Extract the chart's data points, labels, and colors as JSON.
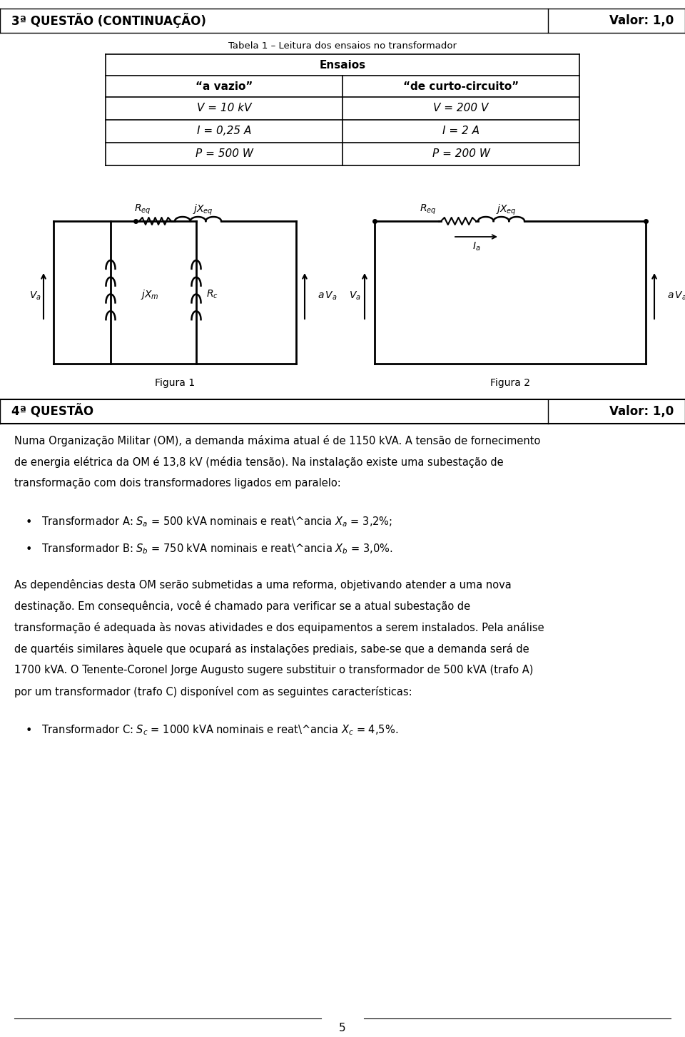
{
  "header_left": "3ª QUESTÃO (CONTINUAÇÃO)",
  "header_right": "Valor: 1,0",
  "table_caption": "Tabela 1 – Leitura dos ensaios no transformador",
  "table_header": "Ensaios",
  "col1_header": "“a vazio”",
  "col2_header": "“de curto-circuito”",
  "col1_rows": [
    "V = 10 kV",
    "I = 0,25 A",
    "P = 500 W"
  ],
  "col2_rows": [
    "V = 200 V",
    "I = 2 A",
    "P = 200 W"
  ],
  "figura1_label": "Figura 1",
  "figura2_label": "Figura 2",
  "section2_header_left": "4ª QUESTÃO",
  "section2_header_right": "Valor: 1,0",
  "p1_lines": [
    "Numa Organização Militar (OM), a demanda máxima atual é de 1150 kVA. A tensão de fornecimento",
    "de energia elétrica da OM é 13,8 kV (média tensão). Na instalação existe uma subestação de",
    "transformação com dois transformadores ligados em paralelo:"
  ],
  "bullet1": "Transformador A:  $S_a$  = 500 kVA nominais e reatância  $X_a$  = 3,2%;",
  "bullet2": "Transformador B:  $S_b$  = 750 kVA nominais e reatância  $X_b$  = 3,0%.",
  "p2_lines": [
    "As dependências desta OM serão submetidas a uma reforma, objetivando atender a uma nova",
    "destinação. Em consequência, você é chamado para verificar se a atual subestação de",
    "transformação é adequada às novas atividades e dos equipamentos a serem instalados. Pela análise",
    "de quartéis similares àquele que ocupará as instalações prediais, sabe-se que a demanda será de",
    "1700 kVA. O Tenente-Coronel Jorge Augusto sugere substituir o transformador de 500 kVA (trafo A)",
    "por um transformador (trafo C) disponível com as seguintes características:"
  ],
  "bullet3": "Transformador C:  $S_c$  = 1000 kVA nominais e reatância  $X_c$  = 4,5%.",
  "page_number": "5",
  "bg_color": "#ffffff",
  "text_color": "#000000"
}
